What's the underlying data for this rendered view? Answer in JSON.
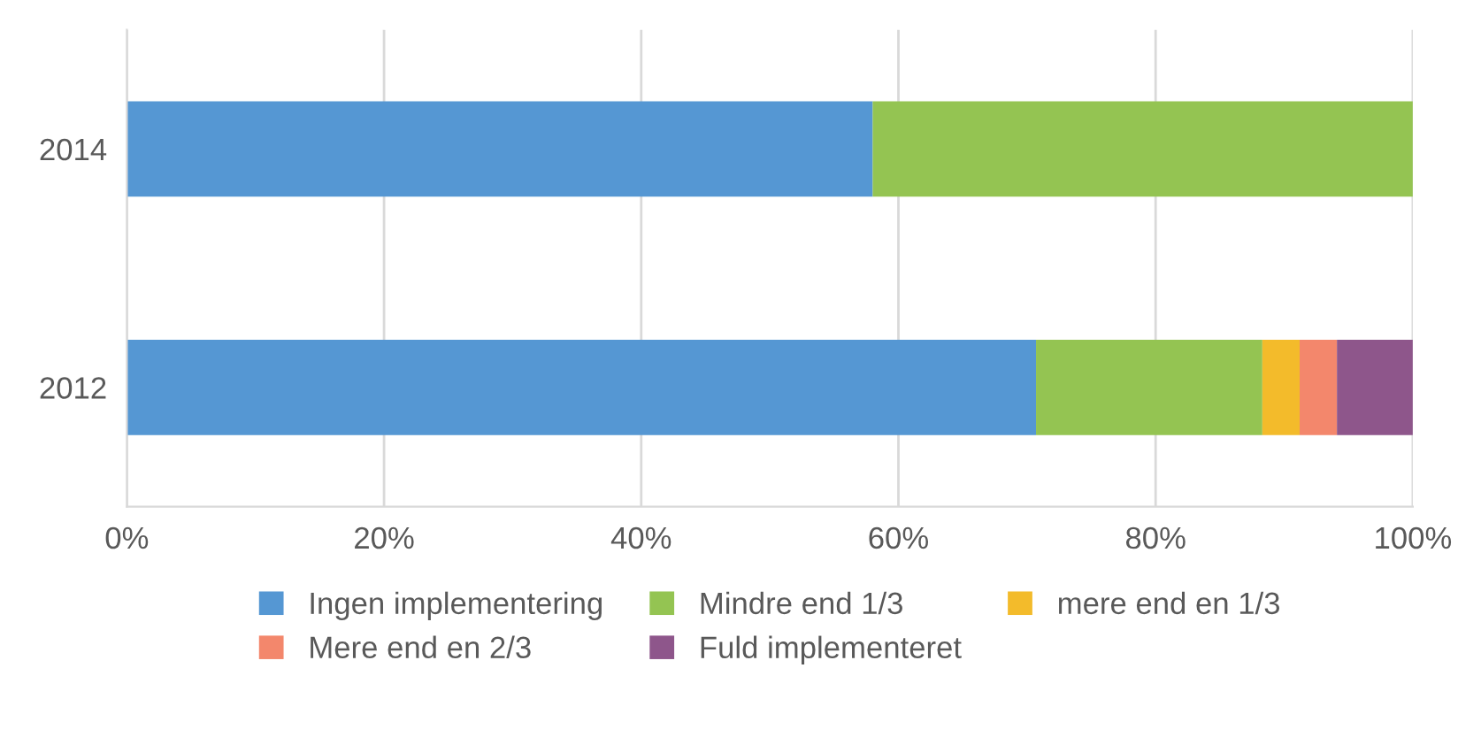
{
  "chart_data": {
    "type": "bar",
    "orientation": "horizontal",
    "stacked": true,
    "categories": [
      "2014",
      "2012"
    ],
    "series": [
      {
        "name": "Ingen implementering",
        "color": "#5597d3",
        "values": [
          58,
          70.7
        ]
      },
      {
        "name": "Mindre end 1/3",
        "color": "#94c452",
        "values": [
          42,
          17.6
        ]
      },
      {
        "name": "mere end en 1/3",
        "color": "#f3bb2b",
        "values": [
          0,
          2.9
        ]
      },
      {
        "name": "Mere end en 2/3",
        "color": "#f3876c",
        "values": [
          0,
          2.9
        ]
      },
      {
        "name": "Fuld implementeret",
        "color": "#8e568b",
        "values": [
          0,
          5.9
        ]
      }
    ],
    "xlim": [
      0,
      100
    ],
    "xticks": [
      {
        "value": 0,
        "label": "0%"
      },
      {
        "value": 20,
        "label": "20%"
      },
      {
        "value": 40,
        "label": "40%"
      },
      {
        "value": 60,
        "label": "60%"
      },
      {
        "value": 80,
        "label": "80%"
      },
      {
        "value": 100,
        "label": "100%"
      }
    ],
    "grid": "x",
    "legend": "bottom"
  }
}
